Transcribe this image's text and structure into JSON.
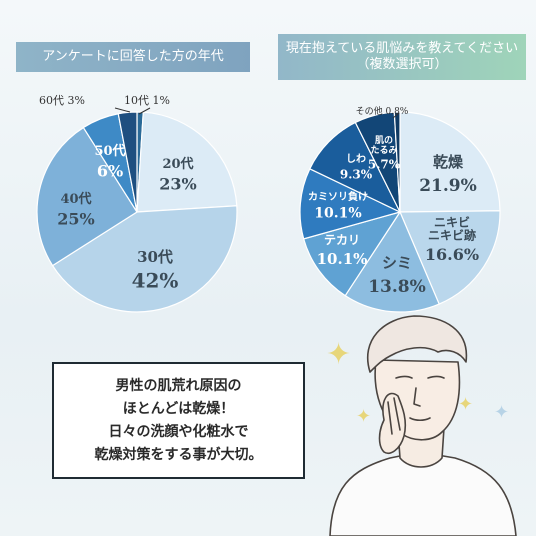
{
  "left_title": "アンケートに回答した方の年代",
  "right_title_line1": "現在抱えている肌悩みを教えてください",
  "right_title_line2": "（複数選択可）",
  "chart_data": [
    {
      "type": "pie",
      "title": "アンケートに回答した方の年代",
      "slices": [
        {
          "label": "10代",
          "value": 1,
          "display": "1%",
          "color": "#2a6a98"
        },
        {
          "label": "20代",
          "value": 23,
          "display": "23%",
          "color": "#dcebf6"
        },
        {
          "label": "30代",
          "value": 42,
          "display": "42%",
          "color": "#b6d4ea"
        },
        {
          "label": "40代",
          "value": 25,
          "display": "25%",
          "color": "#7eb1d9"
        },
        {
          "label": "50代",
          "value": 6,
          "display": "6%",
          "color": "#3e8ac6"
        },
        {
          "label": "60代",
          "value": 3,
          "display": "3%",
          "color": "#1e4f80"
        }
      ]
    },
    {
      "type": "pie",
      "title": "現在抱えている肌悩みを教えてください（複数選択可）",
      "slices": [
        {
          "label": "乾燥",
          "value": 21.9,
          "display": "21.9%",
          "color": "#dcebf6"
        },
        {
          "label": "ニキビ\nニキビ跡",
          "value": 16.6,
          "display": "16.6%",
          "color": "#bad7ec"
        },
        {
          "label": "シミ",
          "value": 13.8,
          "display": "13.8%",
          "color": "#8dbde0"
        },
        {
          "label": "テカリ",
          "value": 10.1,
          "display": "10.1%",
          "color": "#5fa2d3"
        },
        {
          "label": "カミソリ負け",
          "value": 10.1,
          "display": "10.1%",
          "color": "#2f7bbf"
        },
        {
          "label": "しわ",
          "value": 9.3,
          "display": "9.3%",
          "color": "#1a5d9c"
        },
        {
          "label": "肌の\nたるみ",
          "value": 5.7,
          "display": "5.7%",
          "color": "#124677"
        },
        {
          "label": "その他",
          "value": 0.8,
          "display": "0.8%",
          "color": "#0f3a63"
        }
      ]
    }
  ],
  "message_lines": [
    "男性の肌荒れ原因の",
    "ほとんどは乾燥！",
    "日々の洗顔や化粧水で",
    "乾燥対策をする事が大切。"
  ]
}
